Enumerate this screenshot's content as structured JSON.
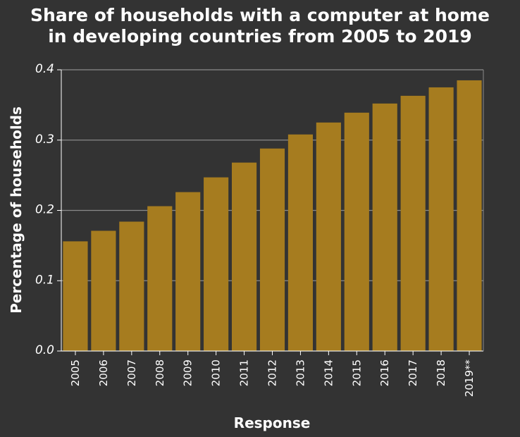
{
  "chart_data": {
    "type": "bar",
    "title_lines": [
      "Share of households with a computer at home",
      "in developing countries from 2005 to 2019"
    ],
    "xlabel": "Response",
    "ylabel": "Percentage of households",
    "categories": [
      "2005",
      "2006",
      "2007",
      "2008",
      "2009",
      "2010",
      "2011",
      "2012",
      "2013",
      "2014",
      "2015",
      "2016",
      "2017",
      "2018",
      "2019**"
    ],
    "values": [
      0.156,
      0.171,
      0.184,
      0.206,
      0.226,
      0.247,
      0.268,
      0.288,
      0.308,
      0.325,
      0.339,
      0.352,
      0.363,
      0.375,
      0.385
    ],
    "ylim": [
      0,
      0.4
    ],
    "yticks": [
      0.0,
      0.1,
      0.2,
      0.3,
      0.4
    ],
    "ytick_labels": [
      "0.0",
      "0.1",
      "0.2",
      "0.3",
      "0.4"
    ],
    "grid": true,
    "legend": "none",
    "colors": {
      "background": "#333333",
      "bar": "#a67c1f",
      "grid": "#8a8a8a",
      "text": "#ffffff"
    }
  }
}
